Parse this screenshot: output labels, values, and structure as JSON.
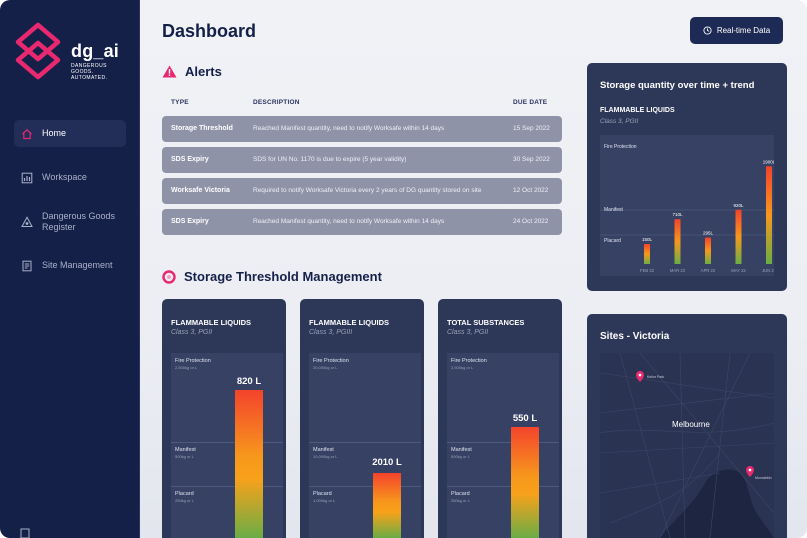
{
  "brand": {
    "name": "dg_ai",
    "tagline_1": "DANGEROUS GOODS.",
    "tagline_2": "AUTOMATED."
  },
  "nav": [
    {
      "label": "Home",
      "icon": "home-icon",
      "active": true
    },
    {
      "label": "Workspace",
      "icon": "chart-icon",
      "active": false
    },
    {
      "label": "Dangerous Goods",
      "label2": "Register",
      "icon": "hazard-icon",
      "active": false
    },
    {
      "label": "Site Management",
      "icon": "document-icon",
      "active": false
    }
  ],
  "header": {
    "title": "Dashboard",
    "realtime_button": "Real-time Data"
  },
  "alerts": {
    "title": "Alerts",
    "columns": {
      "type": "TYPE",
      "description": "DESCRIPTION",
      "due": "DUE DATE"
    },
    "rows": [
      {
        "type": "Storage Threshold",
        "description": "Reached Manifest quantity, need to notify Worksafe within 14 days",
        "due": "15 Sep 2022"
      },
      {
        "type": "SDS Expiry",
        "description": "SDS for UN No. 1170 is due to expire (5 year validity)",
        "due": "30 Sep 2022"
      },
      {
        "type": "Worksafe Victoria",
        "description": "Required to notify Worksafe Victoria every 2 years of DG quantity stored on site",
        "due": "12 Oct 2022"
      },
      {
        "type": "SDS Expiry",
        "description": "Reached Manifest quantity, need to notify Worksafe within 14 days",
        "due": "24 Oct 2022"
      }
    ]
  },
  "threshold": {
    "title": "Storage Threshold Management",
    "cards": [
      {
        "title": "FLAMMABLE LIQUIDS",
        "subtitle": "Class 3, PGII",
        "fire": "Fire Protection",
        "fire_qty": "2,500kg or L",
        "manifest": "Manifest",
        "manifest_qty": "500kg or L",
        "placard": "Placard",
        "placard_qty": "250kg or L",
        "value_label": "820 L",
        "fill": 0.8
      },
      {
        "title": "FLAMMABLE LIQUIDS",
        "subtitle": "Class 3, PGIII",
        "fire": "Fire Protection",
        "fire_qty": "20,000kg or L",
        "manifest": "Manifest",
        "manifest_qty": "10,000kg or L",
        "placard": "Placard",
        "placard_qty": "1,000kg or L",
        "value_label": "2010 L",
        "fill": 0.32
      },
      {
        "title": "TOTAL SUBSTANCES",
        "subtitle": "Class 3, PGII",
        "fire": "Fire Protection",
        "fire_qty": "2,500kg or L",
        "manifest": "Manifest",
        "manifest_qty": "500kg or L",
        "placard": "Placard",
        "placard_qty": "250kg or L",
        "value_label": "550 L",
        "fill": 0.58
      }
    ]
  },
  "trend": {
    "title": "Storage quantity over time + trend",
    "subtitle": "FLAMMABLE LIQUIDS",
    "class": "Class 3, PGII",
    "levels": {
      "fire": "Fire Protection",
      "manifest": "Manifest",
      "placard": "Placard"
    }
  },
  "chart_data": {
    "type": "bar",
    "categories": [
      "FEB 22",
      "MAR 22",
      "APR 22",
      "MAY 22",
      "JUN 22"
    ],
    "values": [
      150,
      710,
      295,
      920,
      1900
    ],
    "value_labels": [
      "150L",
      "710L",
      "295L",
      "920L",
      "1900L"
    ],
    "ylim": [
      -300,
      2200
    ],
    "grid": false,
    "colors": {
      "top": "#f4432c",
      "bottom": "#6aad46"
    }
  },
  "sites": {
    "title": "Sites - Victoria",
    "city": "Melbourne",
    "pins": [
      {
        "label": "Keilor Park"
      },
      {
        "label": "Moorabbin"
      }
    ]
  }
}
